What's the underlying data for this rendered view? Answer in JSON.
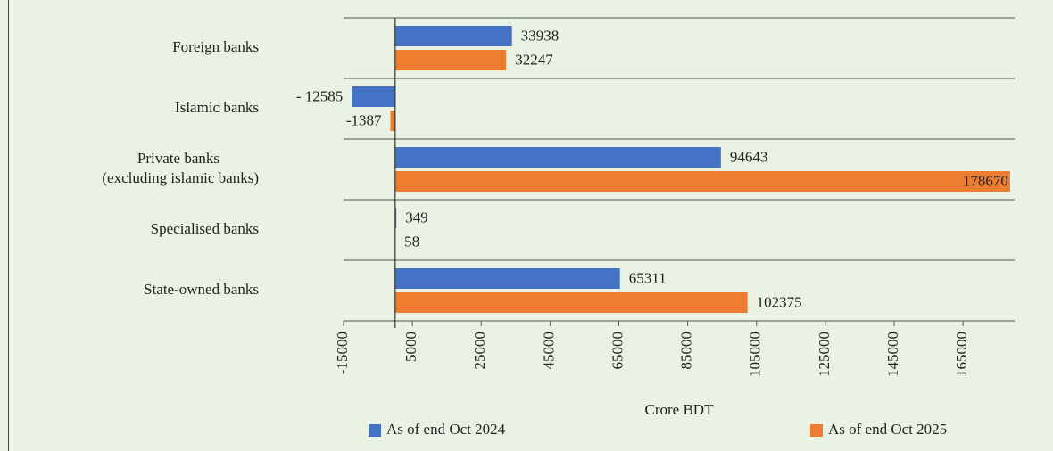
{
  "chart_data": {
    "type": "hbar",
    "categories": [
      "Foreign banks",
      "Islamic banks",
      "Private banks\n(excluding islamic banks)",
      "Specialised banks",
      "State-owned banks"
    ],
    "series": [
      {
        "name": "As of end Oct 2024",
        "color": "#4472c4",
        "values": [
          33938,
          -12585,
          94643,
          349,
          65311
        ],
        "value_labels": [
          "33938",
          "- 12585",
          "94643",
          "349",
          "65311"
        ]
      },
      {
        "name": "As of end Oct 2025",
        "color": "#ed7d31",
        "values": [
          32247,
          -1387,
          178670,
          58,
          102375
        ]
      }
    ],
    "xlabel": "Crore BDT",
    "xlim": [
      -15000,
      180000
    ],
    "xticks": [
      -15000,
      5000,
      25000,
      45000,
      65000,
      85000,
      105000,
      125000,
      145000,
      165000
    ]
  }
}
